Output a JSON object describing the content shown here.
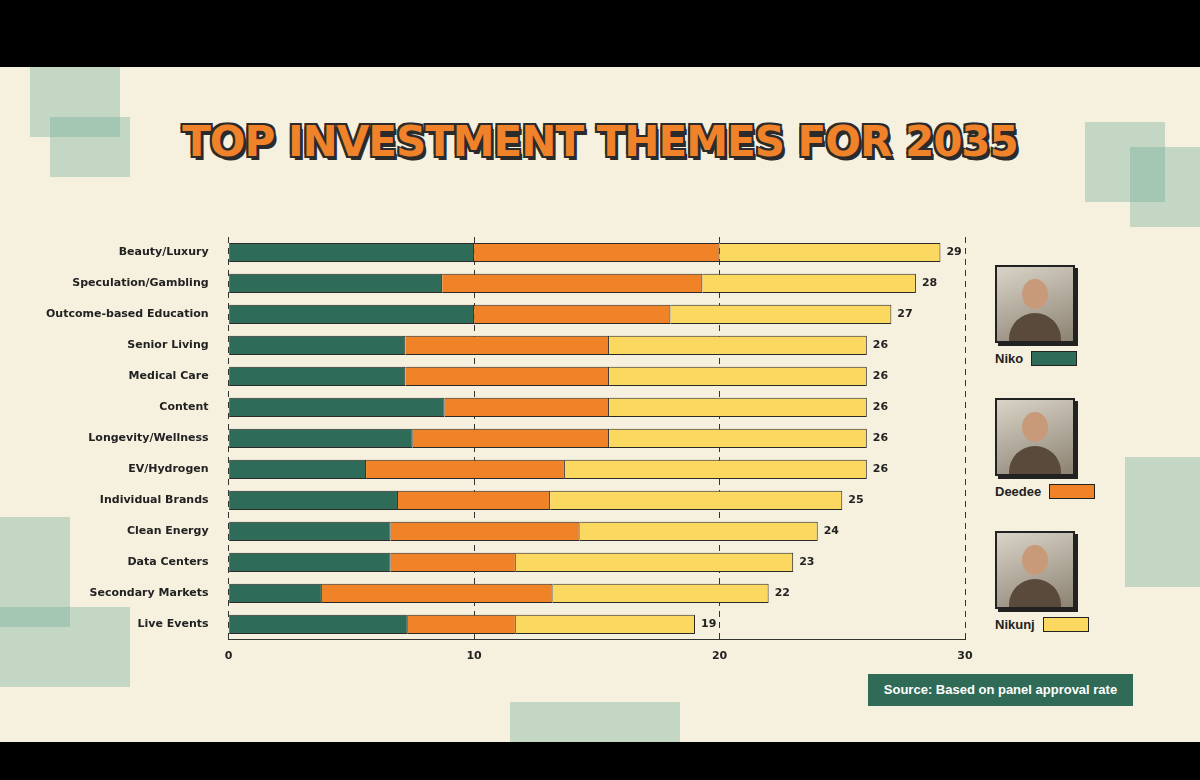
{
  "chart_data": {
    "type": "bar",
    "title": "TOP INVESTMENT THEMES FOR 2035",
    "orientation": "horizontal",
    "stacked": true,
    "grid": true,
    "legend": "right",
    "categories": [
      "Beauty/Luxury",
      "Speculation/Gambling",
      "Outcome-based Education",
      "Senior Living",
      "Medical Care",
      "Content",
      "Longevity/Wellness",
      "EV/Hydrogen",
      "Individual Brands",
      "Clean Energy",
      "Data Centers",
      "Secondary Markets",
      "Live Events"
    ],
    "series": [
      {
        "name": "Niko",
        "color": "#2e6b58",
        "values": [
          10,
          8.7,
          10,
          7.2,
          7.2,
          8.8,
          7.5,
          5.6,
          6.9,
          6.6,
          6.6,
          3.8,
          7.3
        ]
      },
      {
        "name": "Deedee",
        "color": "#f08227",
        "values": [
          10,
          10.6,
          8,
          8.3,
          8.3,
          6.7,
          8,
          8.1,
          6.2,
          7.7,
          5.1,
          9.4,
          4.4
        ]
      },
      {
        "name": "Nikunj",
        "color": "#fbd860",
        "values": [
          9,
          8.7,
          9,
          10.5,
          10.5,
          10.5,
          10.5,
          12.3,
          11.9,
          9.7,
          11.3,
          8.8,
          7.3
        ]
      }
    ],
    "totals": [
      29,
      28,
      27,
      26,
      26,
      26,
      26,
      26,
      25,
      24,
      23,
      22,
      19
    ],
    "xlim": [
      0,
      30
    ],
    "xticks": [
      0,
      10,
      20,
      30
    ],
    "annotations": [
      "Source: Based on panel approval rate"
    ]
  }
}
